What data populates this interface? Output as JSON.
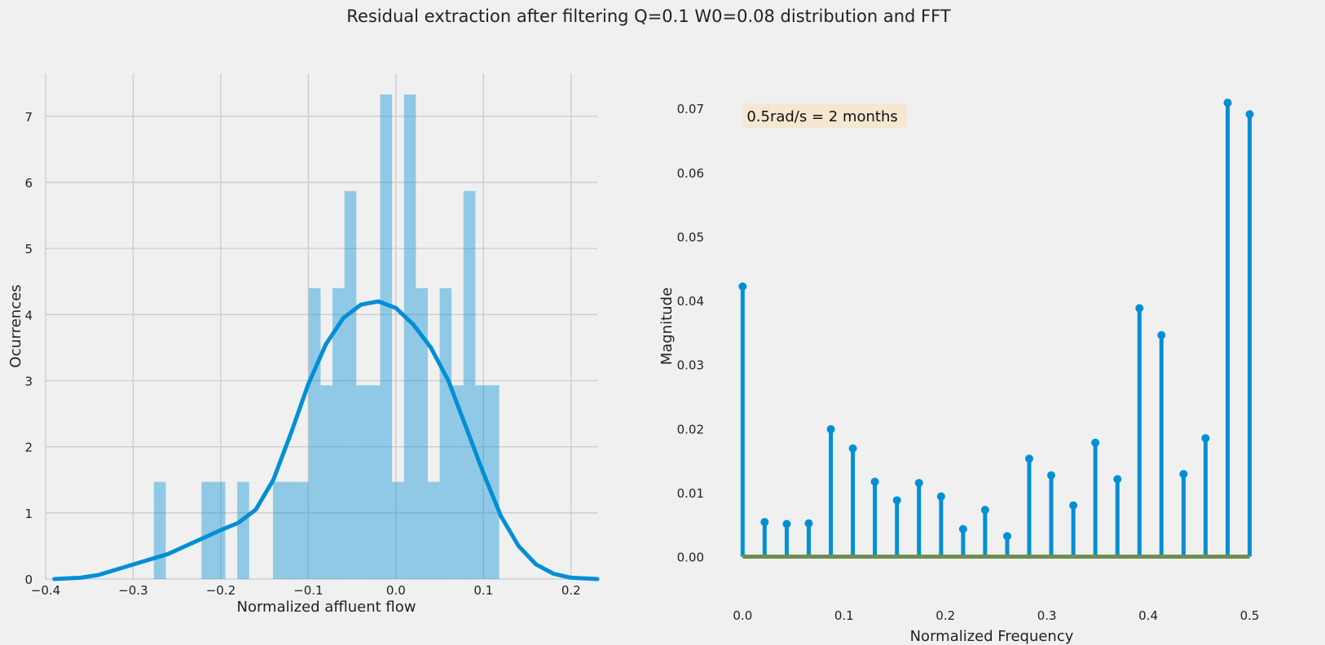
{
  "suptitle": "Residual extraction after filtering Q=0.1 W0=0.08 distribution and FFT",
  "colors": {
    "background": "#f0f0f0",
    "grid": "#cbcbcb",
    "hist_bar": "#008fd5",
    "kde_line": "#008fd5",
    "stem": "#008fd5",
    "baseline": "#6d904f",
    "annotation_box": "#f5e6cc"
  },
  "chart_data": [
    {
      "type": "bar",
      "subtype": "histogram_with_kde",
      "xlabel": "Normalized affluent flow",
      "ylabel": "Ocurrences",
      "xlim": [
        -0.4,
        0.23
      ],
      "ylim": [
        0,
        7.65
      ],
      "xticks": [
        -0.4,
        -0.3,
        -0.2,
        -0.1,
        0.0,
        0.1,
        0.2
      ],
      "xtick_labels": [
        "−0.4",
        "−0.3",
        "−0.2",
        "−0.1",
        "0.0",
        "0.1",
        "0.2"
      ],
      "yticks": [
        0,
        1,
        2,
        3,
        4,
        5,
        6,
        7
      ],
      "ytick_labels": [
        "0",
        "1",
        "2",
        "3",
        "4",
        "5",
        "6",
        "7"
      ],
      "grid": true,
      "bins": [
        {
          "x0": -0.2764,
          "x1": -0.2628,
          "value": 1.47
        },
        {
          "x0": -0.222,
          "x1": -0.2084,
          "value": 1.47
        },
        {
          "x0": -0.2084,
          "x1": -0.1948,
          "value": 1.47
        },
        {
          "x0": -0.1812,
          "x1": -0.1676,
          "value": 1.47
        },
        {
          "x0": -0.1404,
          "x1": -0.1268,
          "value": 1.47
        },
        {
          "x0": -0.1268,
          "x1": -0.1132,
          "value": 1.47
        },
        {
          "x0": -0.1132,
          "x1": -0.0996,
          "value": 1.47
        },
        {
          "x0": -0.0996,
          "x1": -0.086,
          "value": 4.4
        },
        {
          "x0": -0.086,
          "x1": -0.0724,
          "value": 2.93
        },
        {
          "x0": -0.0724,
          "x1": -0.0588,
          "value": 4.4
        },
        {
          "x0": -0.0588,
          "x1": -0.0452,
          "value": 5.87
        },
        {
          "x0": -0.0452,
          "x1": -0.0316,
          "value": 2.93
        },
        {
          "x0": -0.0316,
          "x1": -0.018,
          "value": 2.93
        },
        {
          "x0": -0.018,
          "x1": -0.0044,
          "value": 7.33
        },
        {
          "x0": -0.0044,
          "x1": 0.0092,
          "value": 1.47
        },
        {
          "x0": 0.0092,
          "x1": 0.0228,
          "value": 7.33
        },
        {
          "x0": 0.0228,
          "x1": 0.0364,
          "value": 4.4
        },
        {
          "x0": 0.0364,
          "x1": 0.05,
          "value": 1.47
        },
        {
          "x0": 0.05,
          "x1": 0.0636,
          "value": 4.4
        },
        {
          "x0": 0.0636,
          "x1": 0.0772,
          "value": 2.93
        },
        {
          "x0": 0.0772,
          "x1": 0.0908,
          "value": 5.87
        },
        {
          "x0": 0.0908,
          "x1": 0.1044,
          "value": 2.93
        },
        {
          "x0": 0.1044,
          "x1": 0.118,
          "value": 2.93
        }
      ],
      "kde": {
        "x": [
          -0.39,
          -0.36,
          -0.34,
          -0.32,
          -0.3,
          -0.28,
          -0.26,
          -0.24,
          -0.22,
          -0.2,
          -0.18,
          -0.16,
          -0.14,
          -0.12,
          -0.1,
          -0.08,
          -0.06,
          -0.04,
          -0.02,
          0.0,
          0.02,
          0.04,
          0.06,
          0.08,
          0.1,
          0.12,
          0.14,
          0.16,
          0.18,
          0.2,
          0.23
        ],
        "y": [
          0.0,
          0.02,
          0.06,
          0.14,
          0.22,
          0.3,
          0.38,
          0.5,
          0.62,
          0.74,
          0.85,
          1.05,
          1.5,
          2.2,
          2.95,
          3.55,
          3.95,
          4.15,
          4.2,
          4.1,
          3.85,
          3.5,
          3.0,
          2.3,
          1.6,
          0.95,
          0.5,
          0.22,
          0.08,
          0.02,
          0.0
        ]
      }
    },
    {
      "type": "stem",
      "xlabel": "Normalized Frequency",
      "ylabel": "Magnitude",
      "xlim": [
        -0.03,
        0.51
      ],
      "ylim": [
        -0.0035,
        0.0755
      ],
      "xticks": [
        0.0,
        0.1,
        0.2,
        0.3,
        0.4,
        0.5
      ],
      "xtick_labels": [
        "0.0",
        "0.1",
        "0.2",
        "0.3",
        "0.4",
        "0.5"
      ],
      "yticks": [
        0.0,
        0.01,
        0.02,
        0.03,
        0.04,
        0.05,
        0.06,
        0.07
      ],
      "ytick_labels": [
        "0.00",
        "0.01",
        "0.02",
        "0.03",
        "0.04",
        "0.05",
        "0.06",
        "0.07"
      ],
      "grid": false,
      "annotation": "0.5rad/s = 2 months",
      "x": [
        0.0,
        0.0217,
        0.0435,
        0.0652,
        0.087,
        0.1087,
        0.1304,
        0.1522,
        0.1739,
        0.1957,
        0.2174,
        0.2391,
        0.2609,
        0.2826,
        0.3043,
        0.3261,
        0.3478,
        0.3696,
        0.3913,
        0.413,
        0.4348,
        0.4565,
        0.4783,
        0.5
      ],
      "values": [
        0.0422,
        0.0054,
        0.0051,
        0.0052,
        0.0199,
        0.0169,
        0.0117,
        0.0088,
        0.0115,
        0.0094,
        0.0043,
        0.0073,
        0.0032,
        0.0153,
        0.0127,
        0.008,
        0.0178,
        0.0121,
        0.0388,
        0.0346,
        0.0129,
        0.0185,
        0.0709,
        0.0691
      ]
    }
  ]
}
